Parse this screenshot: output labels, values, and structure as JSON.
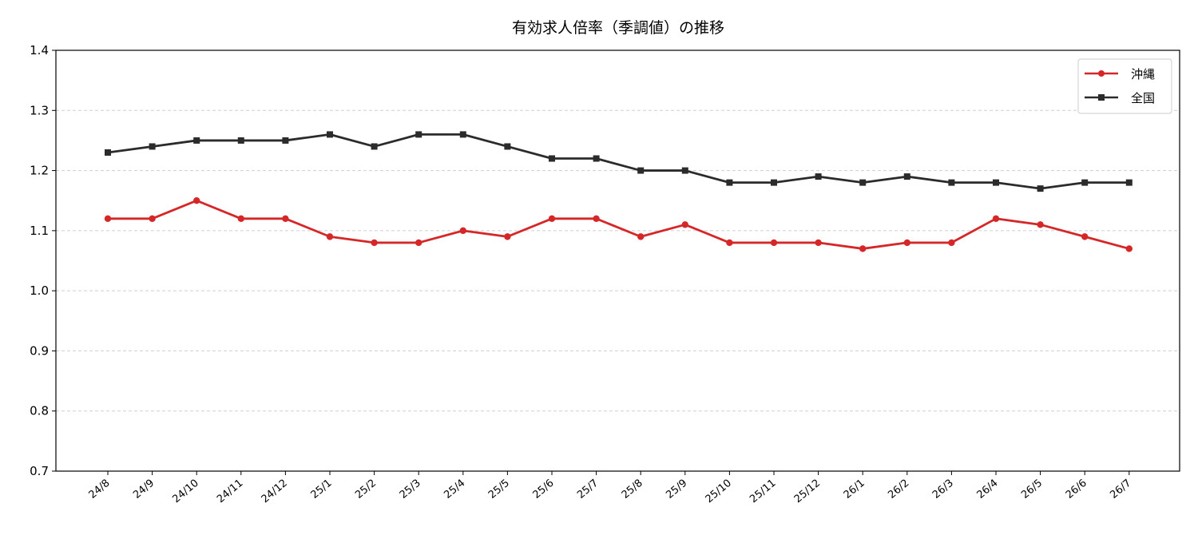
{
  "chart_data": {
    "type": "line",
    "title": "有効求人倍率（季調値）の推移",
    "xlabel": "",
    "ylabel": "",
    "ylim": [
      0.7,
      1.4
    ],
    "yticks": [
      "0.7",
      "0.8",
      "0.9",
      "1.0",
      "1.1",
      "1.2",
      "1.3",
      "1.4"
    ],
    "grid": "horizontal dashed",
    "legend_position": "top-right",
    "categories": [
      "24/8",
      "24/9",
      "24/10",
      "24/11",
      "24/12",
      "25/1",
      "25/2",
      "25/3",
      "25/4",
      "25/5",
      "25/6",
      "25/7",
      "25/8",
      "25/9",
      "25/10",
      "25/11",
      "25/12",
      "26/1",
      "26/2",
      "26/3",
      "26/4",
      "26/5",
      "26/6",
      "26/7"
    ],
    "series": [
      {
        "name": "沖縄",
        "color": "#d62728",
        "marker": "circle",
        "values": [
          1.12,
          1.12,
          1.15,
          1.12,
          1.12,
          1.09,
          1.08,
          1.08,
          1.1,
          1.09,
          1.12,
          1.12,
          1.09,
          1.11,
          1.08,
          1.08,
          1.08,
          1.07,
          1.08,
          1.08,
          1.12,
          1.11,
          1.09,
          1.07
        ]
      },
      {
        "name": "全国",
        "color": "#2b2b2b",
        "marker": "square",
        "values": [
          1.23,
          1.24,
          1.25,
          1.25,
          1.25,
          1.26,
          1.24,
          1.26,
          1.26,
          1.24,
          1.22,
          1.22,
          1.2,
          1.2,
          1.18,
          1.18,
          1.19,
          1.18,
          1.19,
          1.18,
          1.18,
          1.17,
          1.18,
          1.18
        ]
      }
    ]
  }
}
